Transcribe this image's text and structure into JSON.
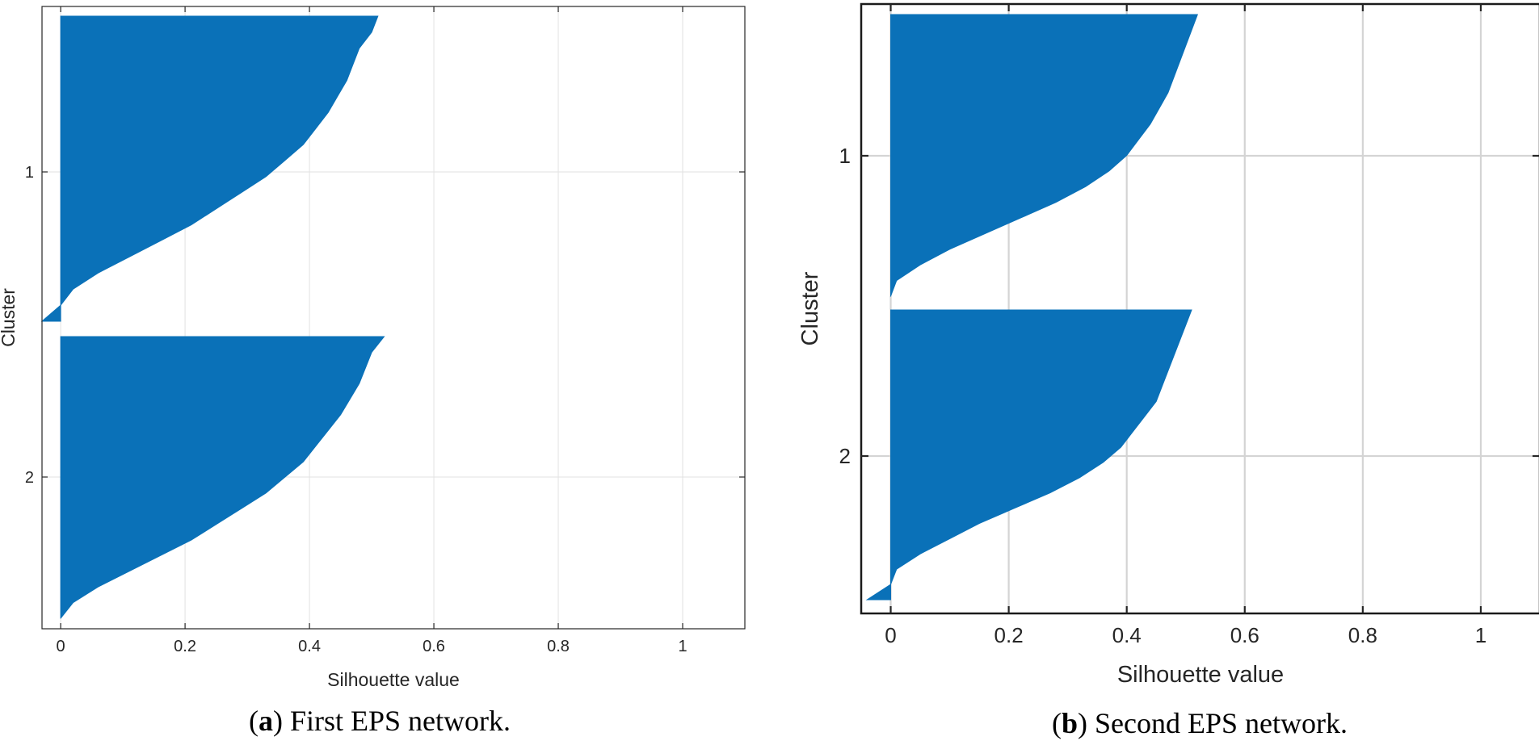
{
  "chart_data": [
    {
      "type": "area",
      "panel_letter": "a",
      "caption": ") First EPS network.",
      "xlabel": "Silhouette value",
      "ylabel": "Cluster",
      "xlim": [
        -0.03,
        1.1
      ],
      "xticks": [
        "0",
        "0.2",
        "0.4",
        "0.6",
        "0.8",
        "1"
      ],
      "xtick_values": [
        0,
        0.2,
        0.4,
        0.6,
        0.8,
        1
      ],
      "yticks": [
        "1",
        "2"
      ],
      "grid": true,
      "series_color": "#0a71b8",
      "clusters": [
        {
          "label": "1",
          "silhouette_top_to_bottom": [
            0.51,
            0.5,
            0.48,
            0.47,
            0.46,
            0.445,
            0.43,
            0.41,
            0.39,
            0.36,
            0.33,
            0.29,
            0.25,
            0.21,
            0.16,
            0.11,
            0.06,
            0.02,
            0.0,
            -0.03
          ]
        },
        {
          "label": "2",
          "silhouette_top_to_bottom": [
            0.52,
            0.5,
            0.49,
            0.48,
            0.465,
            0.45,
            0.43,
            0.41,
            0.39,
            0.36,
            0.33,
            0.29,
            0.25,
            0.21,
            0.16,
            0.11,
            0.06,
            0.02,
            0.0
          ]
        }
      ]
    },
    {
      "type": "area",
      "panel_letter": "b",
      "caption": ") Second EPS network.",
      "xlabel": "Silhouette value",
      "ylabel": "Cluster",
      "xlim": [
        -0.05,
        1.1
      ],
      "xticks": [
        "0",
        "0.2",
        "0.4",
        "0.6",
        "0.8",
        "1"
      ],
      "xtick_values": [
        0,
        0.2,
        0.4,
        0.6,
        0.8,
        1
      ],
      "yticks": [
        "1",
        "2"
      ],
      "grid": true,
      "series_color": "#0a71b8",
      "clusters": [
        {
          "label": "1",
          "silhouette_top_to_bottom": [
            0.52,
            0.51,
            0.5,
            0.49,
            0.48,
            0.47,
            0.455,
            0.44,
            0.42,
            0.4,
            0.37,
            0.33,
            0.28,
            0.22,
            0.16,
            0.1,
            0.05,
            0.01,
            0.0
          ]
        },
        {
          "label": "2",
          "silhouette_top_to_bottom": [
            0.51,
            0.5,
            0.49,
            0.48,
            0.47,
            0.46,
            0.45,
            0.43,
            0.41,
            0.39,
            0.36,
            0.32,
            0.27,
            0.21,
            0.15,
            0.1,
            0.05,
            0.01,
            0.0,
            -0.04
          ]
        }
      ]
    }
  ]
}
